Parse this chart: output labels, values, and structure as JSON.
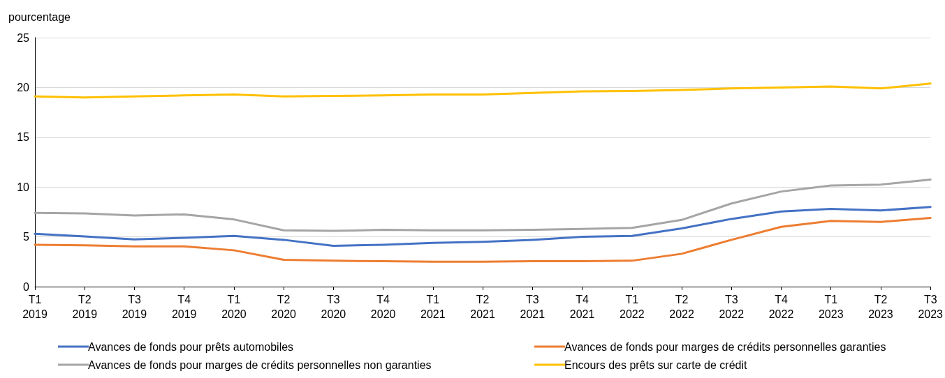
{
  "chart_data": {
    "type": "line",
    "ylabel": "pourcentage",
    "categories": [
      "T1\n2019",
      "T2\n2019",
      "T3\n2019",
      "T4\n2019",
      "T1\n2020",
      "T2\n2020",
      "T3\n2020",
      "T4\n2020",
      "T1\n2021",
      "T2\n2021",
      "T3\n2021",
      "T4\n2021",
      "T1\n2022",
      "T2\n2022",
      "T3\n2022",
      "T4\n2022",
      "T1\n2023",
      "T2\n2023",
      "T3\n2023"
    ],
    "series": [
      {
        "name": "Avances de fonds pour prêts automobiles",
        "color": "#4472c4",
        "values": [
          5.3,
          5.05,
          4.75,
          4.9,
          5.1,
          4.7,
          4.1,
          4.2,
          4.4,
          4.5,
          4.7,
          5.0,
          5.1,
          5.85,
          6.8,
          7.55,
          7.8,
          7.65,
          8.0
        ]
      },
      {
        "name": "Avances de fonds pour marges de crédits personnelles garanties",
        "color": "#ed7d31",
        "values": [
          4.2,
          4.15,
          4.05,
          4.05,
          3.65,
          2.7,
          2.6,
          2.55,
          2.5,
          2.5,
          2.55,
          2.55,
          2.6,
          3.3,
          4.7,
          6.0,
          6.6,
          6.5,
          6.9
        ]
      },
      {
        "name": "Avances de fonds pour marges de crédits personnelles non garanties",
        "color": "#a5a5a5",
        "values": [
          7.4,
          7.35,
          7.15,
          7.25,
          6.75,
          5.65,
          5.6,
          5.7,
          5.65,
          5.65,
          5.7,
          5.8,
          5.9,
          6.7,
          8.35,
          9.55,
          10.15,
          10.25,
          10.75
        ]
      },
      {
        "name": "Encours des prêts sur carte de crédit",
        "color": "#ffc000",
        "values": [
          19.1,
          19.0,
          19.1,
          19.2,
          19.3,
          19.1,
          19.15,
          19.2,
          19.3,
          19.3,
          19.45,
          19.6,
          19.65,
          19.75,
          19.9,
          20.0,
          20.1,
          19.9,
          20.4
        ]
      }
    ],
    "ylim": [
      0,
      25
    ],
    "yticks": [
      0,
      5,
      10,
      15,
      20,
      25
    ],
    "grid": "y",
    "legend": "bottom",
    "marker": "none",
    "line_style": "solid"
  }
}
